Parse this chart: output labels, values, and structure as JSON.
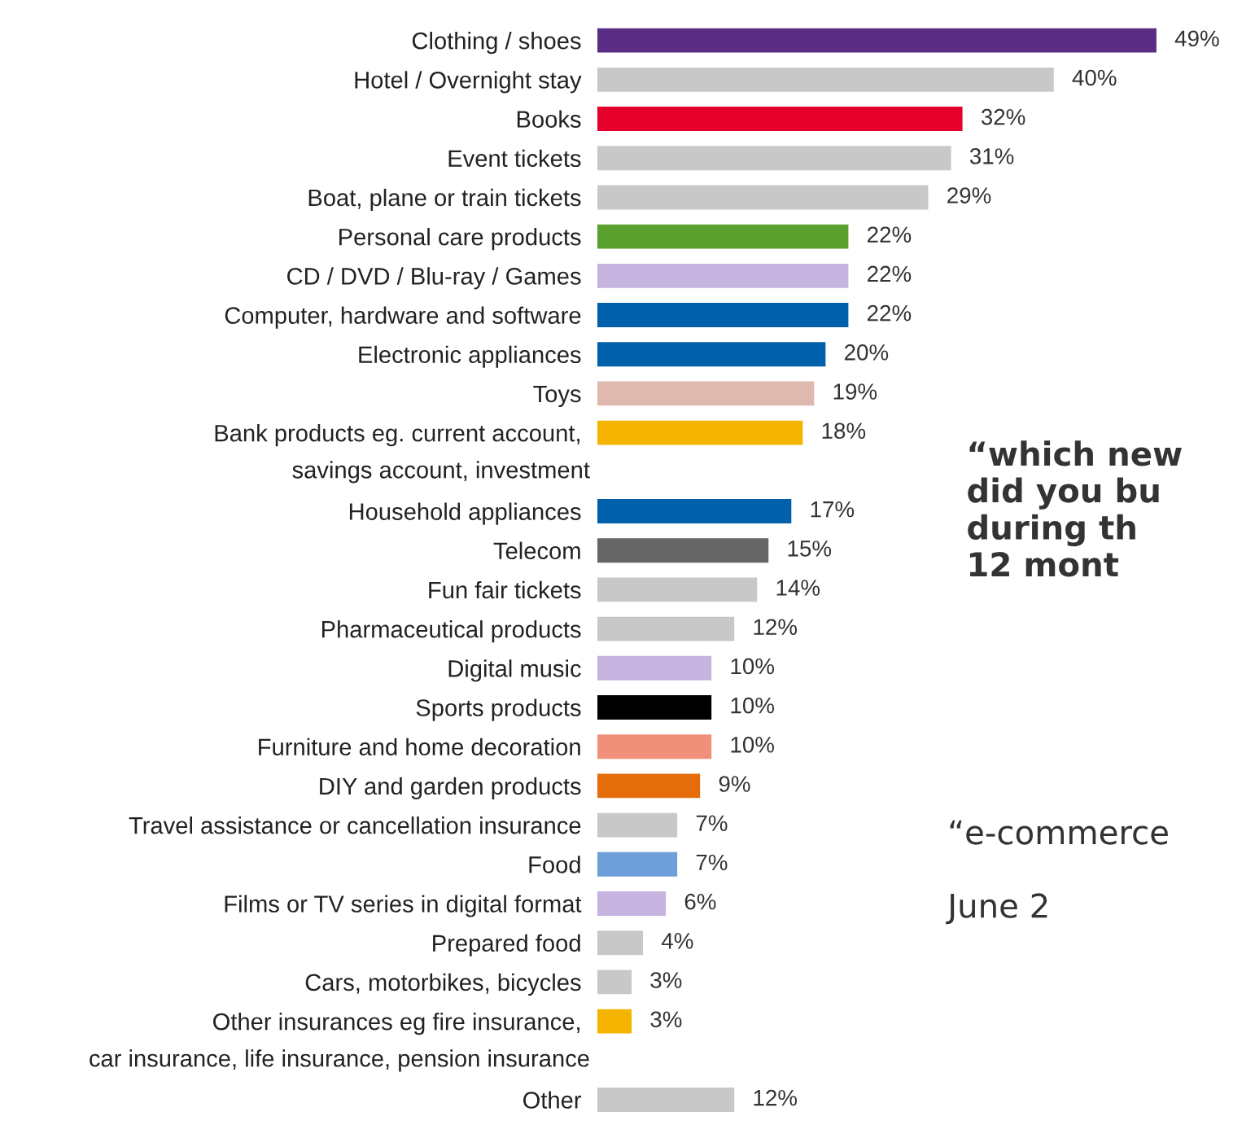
{
  "chart_data": {
    "type": "bar",
    "orientation": "horizontal",
    "categories": [
      "Clothing / shoes",
      "Hotel / Overnight stay",
      "Books",
      "Event tickets",
      "Boat, plane or train tickets",
      "Personal care products",
      "CD / DVD / Blu-ray / Games",
      "Computer, hardware and software",
      "Electronic appliances",
      "Toys",
      "Bank products eg. current account,\nsavings account, investment",
      "Household appliances",
      "Telecom",
      "Fun fair tickets",
      "Pharmaceutical products",
      "Digital music",
      "Sports products",
      "Furniture and home decoration",
      "DIY and garden products",
      "Travel assistance or cancellation insurance",
      "Food",
      "Films or TV series in digital format",
      "Prepared food",
      "Cars, motorbikes, bicycles",
      "Other insurances eg fire insurance,\ncar insurance, life insurance, pension insurance",
      "Other"
    ],
    "values": [
      49,
      40,
      32,
      31,
      29,
      22,
      22,
      22,
      20,
      19,
      18,
      17,
      15,
      14,
      12,
      10,
      10,
      10,
      9,
      7,
      7,
      6,
      4,
      3,
      3,
      12
    ],
    "value_labels": [
      "49%",
      "40%",
      "32%",
      "31%",
      "29%",
      "22%",
      "22%",
      "22%",
      "20%",
      "19%",
      "18%",
      "17%",
      "15%",
      "14%",
      "12%",
      "10%",
      "10%",
      "10%",
      "9%",
      "7%",
      "7%",
      "6%",
      "4%",
      "3%",
      "3%",
      "12%"
    ],
    "colors": [
      "#5b2c83",
      "#c8c8c8",
      "#e4002b",
      "#c8c8c8",
      "#c8c8c8",
      "#5aa02c",
      "#c5b3e0",
      "#0060a9",
      "#0060a9",
      "#dfb8b0",
      "#f5b400",
      "#0060a9",
      "#666666",
      "#c8c8c8",
      "#c8c8c8",
      "#c5b3e0",
      "#000000",
      "#f0907a",
      "#e46c0a",
      "#c8c8c8",
      "#6f9fd8",
      "#c5b3e0",
      "#c8c8c8",
      "#c8c8c8",
      "#f5b400",
      "#c8c8c8"
    ],
    "annotations": [
      "“which new\ndid you bu\nduring th\n12 mont",
      "“e-commerce\n\nJune 2"
    ]
  }
}
